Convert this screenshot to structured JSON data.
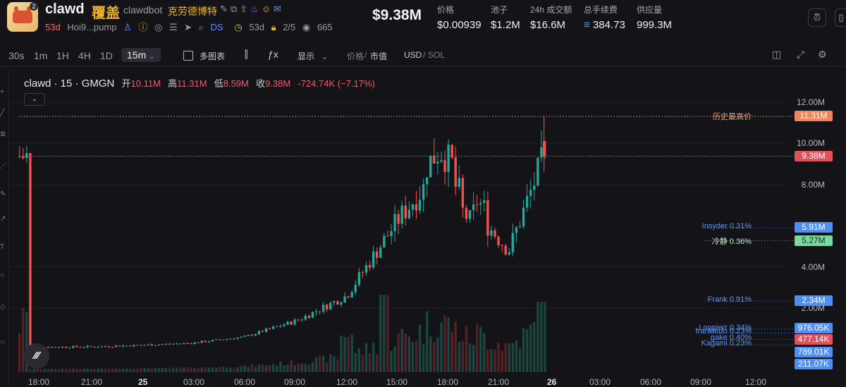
{
  "token": {
    "logo_badge": "2",
    "symbol": "clawd",
    "cover_label": "覆盖",
    "full_name": "clawdbot",
    "chinese_name": "克劳德博特",
    "age": "53d",
    "address": "Hoi9...pump",
    "ds_label": "DS",
    "ds_age": "53d",
    "ratio": "2/5",
    "views": "665"
  },
  "market": {
    "market_cap": "$9.38M",
    "stats": [
      {
        "label": "价格",
        "value": "$0.00939"
      },
      {
        "label": "池子",
        "value": "$1.2M"
      },
      {
        "label": "24h 成交额",
        "value": "$16.6M"
      },
      {
        "label": "总手续费",
        "value": "384.73"
      },
      {
        "label": "供应量",
        "value": "999.3M"
      }
    ]
  },
  "toolbar": {
    "timeframes": [
      "30s",
      "1m",
      "1H",
      "4H",
      "1D"
    ],
    "active_timeframe": "15m",
    "multi_chart": "多图表",
    "display": "显示",
    "price_label": "价格",
    "mcap_label": "市值",
    "usd": "USD",
    "sol": "SOL"
  },
  "legend": {
    "title": "clawd · 15 · GMGN",
    "open_label": "开",
    "open": "10.11M",
    "high_label": "高",
    "high": "11.31M",
    "low_label": "低",
    "low": "8.59M",
    "close_label": "收",
    "close": "9.38M",
    "change": "-724.74K (−7.17%)"
  },
  "colors": {
    "up": "#26a69a",
    "down": "#ef5350",
    "ath": "#f0845a",
    "holder": "#4e8ff7"
  },
  "y_axis": [
    {
      "label": "12.00M",
      "value": 12
    },
    {
      "label": "10.00M",
      "value": 10
    },
    {
      "label": "8.00M",
      "value": 8
    },
    {
      "label": "4.00M",
      "value": 4
    },
    {
      "label": "2.00M",
      "value": 2
    }
  ],
  "x_axis": [
    "18:00",
    "21:00",
    "25",
    "03:00",
    "06:00",
    "09:00",
    "12:00",
    "15:00",
    "18:00",
    "21:00",
    "26",
    "03:00",
    "06:00",
    "09:00",
    "12:00"
  ],
  "price_tags": [
    {
      "label": "历史最高价",
      "tag": "11.31M",
      "value": 11.31,
      "type": "ath"
    },
    {
      "label": "",
      "tag": "9.38M",
      "value": 9.38,
      "type": "current"
    },
    {
      "label": "Insyder 0.31%",
      "tag": "5.91M",
      "value": 5.91,
      "type": "holder"
    },
    {
      "label": "冷静 0.36%",
      "tag": "5.27M",
      "value": 5.27,
      "type": "holder-green"
    },
    {
      "label": "Frank 0.91%",
      "tag": "2.34M",
      "value": 2.34,
      "type": "holder"
    },
    {
      "label": "Loopierr 0.34%",
      "tag": "976.05K",
      "value": 0.976,
      "type": "holder"
    },
    {
      "label": "gake 0.40%",
      "tag": "477.14K",
      "value": 0.477,
      "type": "holder-red"
    },
    {
      "label": "frankiedo 0.23%",
      "tag": "789.01K",
      "value": 0.789,
      "type": "holder"
    },
    {
      "label": "Kagami 0.23%",
      "tag": "211.07K",
      "value": 0.211,
      "type": "holder"
    }
  ],
  "chart_data": {
    "type": "candlestick",
    "x": [
      "18:00",
      "21:00",
      "25",
      "03:00",
      "06:00",
      "09:00",
      "12:00",
      "15:00",
      "18:00",
      "21:00",
      "26"
    ],
    "close_approx": [
      0.1,
      0.12,
      0.2,
      0.3,
      0.6,
      1.4,
      2.6,
      6.4,
      8.8,
      4.8,
      9.38
    ],
    "ylim": [
      0,
      12.5
    ],
    "ylabel": ""
  }
}
